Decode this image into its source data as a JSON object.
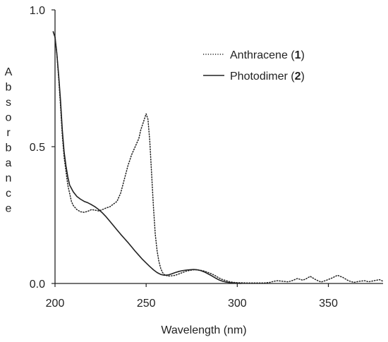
{
  "chart_data": {
    "type": "line",
    "title": "",
    "xlabel": "Wavelength (nm)",
    "ylabel": "Absorbance",
    "xlim": [
      200,
      380
    ],
    "ylim": [
      0,
      1.0
    ],
    "x_ticks": [
      "200",
      "250",
      "300",
      "350"
    ],
    "y_ticks": [
      "0.0",
      "0.5",
      "1.0"
    ],
    "legend_position": "top-right",
    "grid": false,
    "series": [
      {
        "name": "Anthracene (1)",
        "name_prefix": "Anthracene (",
        "name_bold": "1",
        "name_suffix": ")",
        "style": "dotted",
        "color": "#222222",
        "points": [
          [
            199,
            0.92
          ],
          [
            200,
            0.9
          ],
          [
            201,
            0.84
          ],
          [
            202,
            0.75
          ],
          [
            203,
            0.65
          ],
          [
            204,
            0.54
          ],
          [
            205,
            0.46
          ],
          [
            206,
            0.41
          ],
          [
            207,
            0.36
          ],
          [
            208,
            0.33
          ],
          [
            209,
            0.3
          ],
          [
            210,
            0.285
          ],
          [
            212,
            0.27
          ],
          [
            214,
            0.262
          ],
          [
            216,
            0.26
          ],
          [
            218,
            0.264
          ],
          [
            220,
            0.27
          ],
          [
            222,
            0.268
          ],
          [
            224,
            0.265
          ],
          [
            226,
            0.27
          ],
          [
            228,
            0.276
          ],
          [
            230,
            0.28
          ],
          [
            232,
            0.29
          ],
          [
            234,
            0.3
          ],
          [
            236,
            0.33
          ],
          [
            238,
            0.38
          ],
          [
            240,
            0.43
          ],
          [
            242,
            0.47
          ],
          [
            244,
            0.5
          ],
          [
            246,
            0.53
          ],
          [
            247,
            0.56
          ],
          [
            248,
            0.58
          ],
          [
            249,
            0.6
          ],
          [
            250,
            0.62
          ],
          [
            251,
            0.6
          ],
          [
            252,
            0.52
          ],
          [
            253,
            0.4
          ],
          [
            254,
            0.28
          ],
          [
            255,
            0.18
          ],
          [
            256,
            0.12
          ],
          [
            257,
            0.08
          ],
          [
            258,
            0.055
          ],
          [
            259,
            0.04
          ],
          [
            260,
            0.032
          ],
          [
            262,
            0.027
          ],
          [
            264,
            0.028
          ],
          [
            266,
            0.03
          ],
          [
            268,
            0.035
          ],
          [
            270,
            0.04
          ],
          [
            272,
            0.045
          ],
          [
            274,
            0.048
          ],
          [
            276,
            0.05
          ],
          [
            278,
            0.05
          ],
          [
            280,
            0.048
          ],
          [
            282,
            0.045
          ],
          [
            284,
            0.04
          ],
          [
            286,
            0.035
          ],
          [
            288,
            0.028
          ],
          [
            290,
            0.02
          ],
          [
            292,
            0.014
          ],
          [
            294,
            0.01
          ],
          [
            296,
            0.006
          ],
          [
            298,
            0.004
          ],
          [
            300,
            0.003
          ],
          [
            305,
            0.002
          ],
          [
            310,
            0.002
          ],
          [
            315,
            0.002
          ],
          [
            318,
            0.004
          ],
          [
            320,
            0.008
          ],
          [
            322,
            0.01
          ],
          [
            325,
            0.008
          ],
          [
            328,
            0.006
          ],
          [
            330,
            0.01
          ],
          [
            333,
            0.018
          ],
          [
            336,
            0.012
          ],
          [
            338,
            0.018
          ],
          [
            340,
            0.026
          ],
          [
            343,
            0.014
          ],
          [
            346,
            0.005
          ],
          [
            349,
            0.012
          ],
          [
            352,
            0.02
          ],
          [
            355,
            0.03
          ],
          [
            358,
            0.022
          ],
          [
            361,
            0.01
          ],
          [
            364,
            0.004
          ],
          [
            367,
            0.008
          ],
          [
            370,
            0.01
          ],
          [
            372,
            0.006
          ],
          [
            375,
            0.01
          ],
          [
            378,
            0.014
          ],
          [
            380,
            0.008
          ]
        ]
      },
      {
        "name": "Photodimer (2)",
        "name_prefix": "Photodimer (",
        "name_bold": "2",
        "name_suffix": ")",
        "style": "solid",
        "color": "#222222",
        "points": [
          [
            199,
            0.92
          ],
          [
            200,
            0.9
          ],
          [
            201,
            0.84
          ],
          [
            202,
            0.76
          ],
          [
            203,
            0.67
          ],
          [
            204,
            0.56
          ],
          [
            205,
            0.48
          ],
          [
            206,
            0.43
          ],
          [
            207,
            0.39
          ],
          [
            208,
            0.36
          ],
          [
            210,
            0.335
          ],
          [
            212,
            0.318
          ],
          [
            214,
            0.308
          ],
          [
            216,
            0.3
          ],
          [
            218,
            0.295
          ],
          [
            220,
            0.288
          ],
          [
            222,
            0.28
          ],
          [
            224,
            0.27
          ],
          [
            226,
            0.258
          ],
          [
            228,
            0.244
          ],
          [
            230,
            0.228
          ],
          [
            232,
            0.212
          ],
          [
            234,
            0.196
          ],
          [
            236,
            0.18
          ],
          [
            238,
            0.165
          ],
          [
            240,
            0.15
          ],
          [
            242,
            0.134
          ],
          [
            244,
            0.118
          ],
          [
            246,
            0.103
          ],
          [
            248,
            0.088
          ],
          [
            250,
            0.075
          ],
          [
            252,
            0.062
          ],
          [
            254,
            0.05
          ],
          [
            256,
            0.04
          ],
          [
            258,
            0.033
          ],
          [
            260,
            0.03
          ],
          [
            262,
            0.031
          ],
          [
            264,
            0.035
          ],
          [
            266,
            0.04
          ],
          [
            268,
            0.044
          ],
          [
            270,
            0.047
          ],
          [
            272,
            0.049
          ],
          [
            274,
            0.05
          ],
          [
            276,
            0.051
          ],
          [
            278,
            0.05
          ],
          [
            280,
            0.047
          ],
          [
            282,
            0.042
          ],
          [
            284,
            0.035
          ],
          [
            286,
            0.028
          ],
          [
            288,
            0.02
          ],
          [
            290,
            0.013
          ],
          [
            292,
            0.008
          ],
          [
            294,
            0.005
          ],
          [
            296,
            0.003
          ],
          [
            298,
            0.002
          ],
          [
            300,
            0.001
          ],
          [
            302,
            0.0
          ]
        ]
      }
    ]
  }
}
